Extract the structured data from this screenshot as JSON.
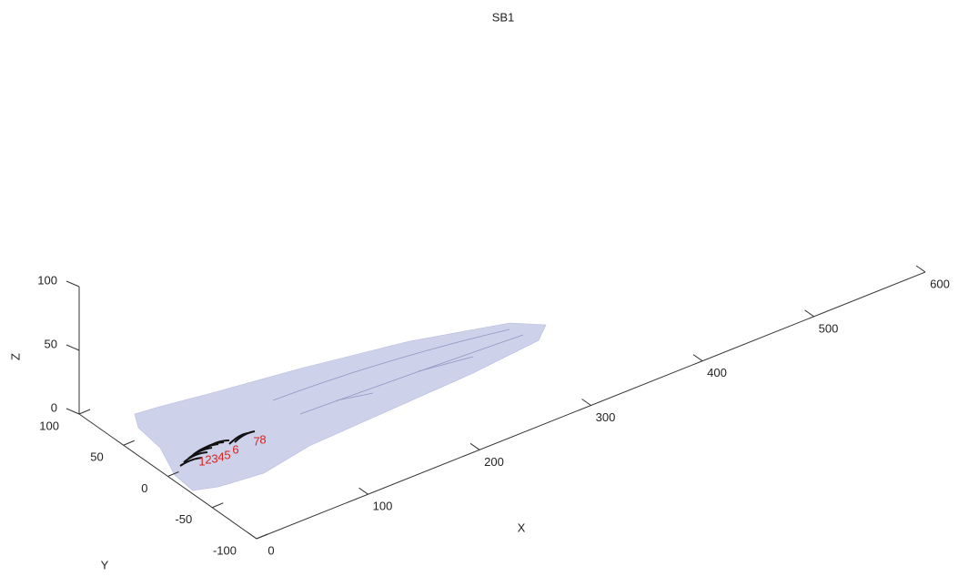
{
  "chart_data": {
    "type": "surface3d",
    "title": "SB1",
    "x_label": "X",
    "y_label": "Y",
    "z_label": "Z",
    "xlim": [
      0,
      600
    ],
    "ylim": [
      -100,
      100
    ],
    "zlim": [
      0,
      100
    ],
    "xticks": [
      0,
      100,
      200,
      300,
      400,
      500,
      600
    ],
    "yticks": [
      -100,
      -50,
      0,
      50,
      100
    ],
    "zticks": [
      0,
      50,
      100
    ],
    "surface_color": "#c5c9e6",
    "point_labels": [
      "1",
      "2",
      "3",
      "4",
      "5",
      "6",
      "7",
      "8"
    ],
    "point_label_color": "#e0201b"
  }
}
